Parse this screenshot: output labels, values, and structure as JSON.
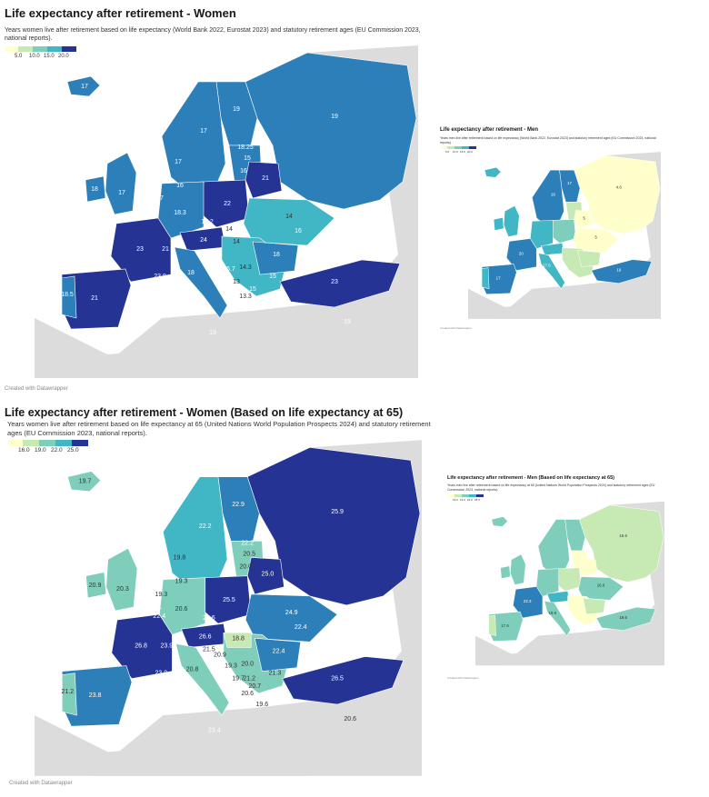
{
  "colors": {
    "bins": [
      "#ffffcc",
      "#c7e9b4",
      "#7fcdbb",
      "#41b6c4",
      "#2c7fb8",
      "#253494"
    ],
    "land_other": "#dcdcdc",
    "sea": "#ffffff",
    "border": "#ffffff"
  },
  "panel1": {
    "title": "Life expectancy after retirement - Women",
    "subtitle": "Years women live after retirement based on life expectancy (World Bank 2022, Eurostat 2023) and statutory retirement ages (EU Commission 2023, national reports).",
    "legend_ticks": [
      "5.0",
      "10.0",
      "15.0",
      "20.0"
    ],
    "credit": "Created with Datawrapper",
    "labels": [
      {
        "name": "iceland",
        "text": "17",
        "bin": 4
      },
      {
        "name": "norway",
        "text": "17",
        "bin": 4
      },
      {
        "name": "sweden",
        "text": "17",
        "bin": 4
      },
      {
        "name": "finland",
        "text": "19",
        "bin": 4
      },
      {
        "name": "russia",
        "text": "19",
        "bin": 4
      },
      {
        "name": "estonia",
        "text": "18.25",
        "bin": 4
      },
      {
        "name": "latvia",
        "text": "15",
        "bin": 4
      },
      {
        "name": "lithuania",
        "text": "16",
        "bin": 4
      },
      {
        "name": "belarus",
        "text": "21",
        "bin": 5
      },
      {
        "name": "denmark",
        "text": "16",
        "bin": 4
      },
      {
        "name": "ireland",
        "text": "18",
        "bin": 4
      },
      {
        "name": "uk",
        "text": "17",
        "bin": 4
      },
      {
        "name": "poland",
        "text": "22",
        "bin": 5
      },
      {
        "name": "ukraine",
        "text": "14",
        "bin": 3
      },
      {
        "name": "netherlands",
        "text": "17",
        "bin": 4
      },
      {
        "name": "belgium",
        "text": "18",
        "bin": 4
      },
      {
        "name": "germany",
        "text": "18.3",
        "bin": 4
      },
      {
        "name": "czechia",
        "text": "19.2",
        "bin": 4
      },
      {
        "name": "moldova",
        "text": "16",
        "bin": 4
      },
      {
        "name": "romania",
        "text": "18",
        "bin": 4
      },
      {
        "name": "france",
        "text": "23",
        "bin": 5
      },
      {
        "name": "switzerland",
        "text": "21",
        "bin": 5
      },
      {
        "name": "austria",
        "text": "24",
        "bin": 5
      },
      {
        "name": "slovakia",
        "text": "14",
        "bin": 3
      },
      {
        "name": "hungary",
        "text": "14",
        "bin": 3
      },
      {
        "name": "italy",
        "text": "18",
        "bin": 4
      },
      {
        "name": "serbia",
        "text": "14.3",
        "bin": 3
      },
      {
        "name": "bulgaria",
        "text": "15",
        "bin": 4
      },
      {
        "name": "bosnia",
        "text": "16.7",
        "bin": 4
      },
      {
        "name": "montenegro",
        "text": "13",
        "bin": 3
      },
      {
        "name": "albania",
        "text": "13.3",
        "bin": 3
      },
      {
        "name": "n-macedonia",
        "text": "15",
        "bin": 4
      },
      {
        "name": "turkey",
        "text": "23",
        "bin": 5
      },
      {
        "name": "monaco",
        "text": "23.8",
        "bin": 5
      },
      {
        "name": "portugal",
        "text": "18.5",
        "bin": 4
      },
      {
        "name": "spain",
        "text": "21",
        "bin": 5
      },
      {
        "name": "malta",
        "text": "19",
        "bin": 4
      },
      {
        "name": "cyprus",
        "text": "19",
        "bin": 4
      }
    ]
  },
  "panel2": {
    "title": "Life expectancy after retirement - Men",
    "subtitle": "Years men live after retirement based on life expectancy (World Bank 2022, Eurostat 2023) and statutory retirement ages (EU Commission 2023, national reports).",
    "legend_ticks": [
      "5.0",
      "10.0",
      "15.0",
      "20.0"
    ],
    "credit": "Created with Datawrapper",
    "labels": [
      {
        "name": "russia",
        "text": "4.6",
        "bin": 0
      },
      {
        "name": "finland",
        "text": "17",
        "bin": 4
      },
      {
        "name": "sweden",
        "text": "16",
        "bin": 4
      },
      {
        "name": "ukraine",
        "text": "5",
        "bin": 0
      },
      {
        "name": "belarus",
        "text": "5",
        "bin": 0
      },
      {
        "name": "france",
        "text": "20",
        "bin": 5
      },
      {
        "name": "spain",
        "text": "17",
        "bin": 4
      },
      {
        "name": "italy",
        "text": "17.6",
        "bin": 4
      },
      {
        "name": "turkey",
        "text": "19",
        "bin": 4
      }
    ]
  },
  "panel3": {
    "title": "Life expectancy after retirement - Women (Based on life expectancy at 65)",
    "subtitle": "Years women live after retirement based on life expectancy at 65 (United Nations World Population Prospects 2024) and statutory retirement ages (EU Commission 2023, national reports).",
    "legend_ticks": [
      "16.0",
      "19.0",
      "22.0",
      "25.0"
    ],
    "credit": "Created with Datawrapper",
    "labels": [
      {
        "name": "iceland",
        "text": "19.7",
        "bin": 3
      },
      {
        "name": "norway",
        "text": "19.8",
        "bin": 3
      },
      {
        "name": "sweden",
        "text": "22.2",
        "bin": 4
      },
      {
        "name": "finland",
        "text": "22.9",
        "bin": 4
      },
      {
        "name": "russia",
        "text": "25.9",
        "bin": 5
      },
      {
        "name": "estonia",
        "text": "22.2",
        "bin": 4
      },
      {
        "name": "latvia",
        "text": "20.5",
        "bin": 3
      },
      {
        "name": "lithuania",
        "text": "20.0",
        "bin": 3
      },
      {
        "name": "belarus",
        "text": "25.0",
        "bin": 5
      },
      {
        "name": "denmark",
        "text": "19.3",
        "bin": 3
      },
      {
        "name": "ireland",
        "text": "20.9",
        "bin": 3
      },
      {
        "name": "uk",
        "text": "20.3",
        "bin": 3
      },
      {
        "name": "netherlands",
        "text": "19.3",
        "bin": 3
      },
      {
        "name": "belgium",
        "text": "22.1",
        "bin": 4
      },
      {
        "name": "luxembourg",
        "text": "22.4",
        "bin": 4
      },
      {
        "name": "germany",
        "text": "20.6",
        "bin": 3
      },
      {
        "name": "poland",
        "text": "25.5",
        "bin": 5
      },
      {
        "name": "ukraine",
        "text": "24.9",
        "bin": 4
      },
      {
        "name": "czechia",
        "text": "22.6",
        "bin": 4
      },
      {
        "name": "slovakia",
        "text": "22.9",
        "bin": 4
      },
      {
        "name": "moldova",
        "text": "22.4",
        "bin": 4
      },
      {
        "name": "romania",
        "text": "22.4",
        "bin": 4
      },
      {
        "name": "france",
        "text": "26.8",
        "bin": 5
      },
      {
        "name": "switzerland",
        "text": "23.9",
        "bin": 4
      },
      {
        "name": "austria",
        "text": "26.6",
        "bin": 5
      },
      {
        "name": "slovenia",
        "text": "21.5",
        "bin": 3
      },
      {
        "name": "croatia",
        "text": "20.9",
        "bin": 3
      },
      {
        "name": "hungary",
        "text": "18.8",
        "bin": 2
      },
      {
        "name": "italy",
        "text": "20.8",
        "bin": 3
      },
      {
        "name": "bosnia",
        "text": "19.3",
        "bin": 3
      },
      {
        "name": "serbia",
        "text": "20.0",
        "bin": 3
      },
      {
        "name": "montenegro",
        "text": "19.7",
        "bin": 3
      },
      {
        "name": "kosovo",
        "text": "21.2",
        "bin": 3
      },
      {
        "name": "bulgaria",
        "text": "21.3",
        "bin": 3
      },
      {
        "name": "n-macedonia",
        "text": "20.7",
        "bin": 3
      },
      {
        "name": "albania",
        "text": "20.6",
        "bin": 3
      },
      {
        "name": "greece",
        "text": "19.6",
        "bin": 3
      },
      {
        "name": "turkey",
        "text": "26.5",
        "bin": 5
      },
      {
        "name": "monaco",
        "text": "23.9",
        "bin": 4
      },
      {
        "name": "portugal",
        "text": "21.2",
        "bin": 3
      },
      {
        "name": "spain",
        "text": "23.8",
        "bin": 4
      },
      {
        "name": "malta",
        "text": "23.4",
        "bin": 4
      },
      {
        "name": "cyprus",
        "text": "20.6",
        "bin": 3
      }
    ]
  },
  "panel4": {
    "title": "Life expectancy after retirement - Men (Based on life expectancy at 65)",
    "subtitle": "Years men live after retirement based on life expectancy at 65 (United Nations World Population Prospects 2024) and statutory retirement ages (EU Commission 2023, national reports).",
    "legend_ticks": [
      "16.0",
      "19.0",
      "22.0",
      "25.0"
    ],
    "credit": "Created with Datawrapper",
    "labels": [
      {
        "name": "russia",
        "text": "16.6",
        "bin": 1
      },
      {
        "name": "ukraine",
        "text": "16.6",
        "bin": 1
      },
      {
        "name": "france",
        "text": "22.3",
        "bin": 4
      },
      {
        "name": "spain",
        "text": "17.6",
        "bin": 3
      },
      {
        "name": "turkey",
        "text": "19.6",
        "bin": 3
      },
      {
        "name": "italy",
        "text": "19.9",
        "bin": 3
      }
    ]
  }
}
